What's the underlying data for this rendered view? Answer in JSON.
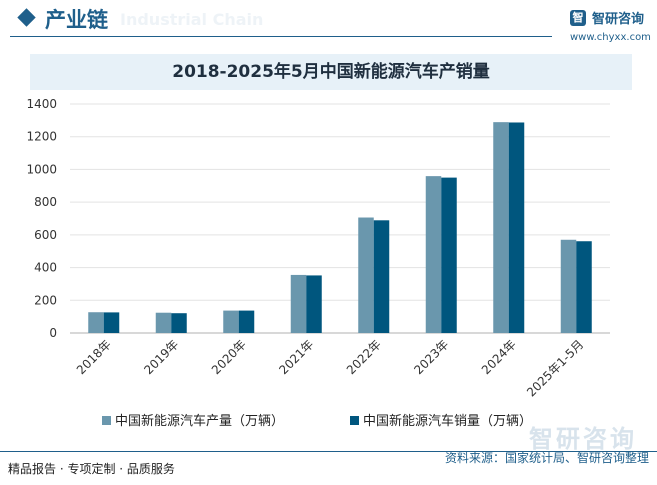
{
  "header": {
    "section_title": "产业链",
    "bg_word": "Industrial Chain",
    "brand_name": "智研咨询",
    "brand_url": "www.chyxx.com"
  },
  "chart_title": "2018-2025年5月中国新能源汽车产销量",
  "colors": {
    "production": "#6a97ad",
    "sales": "#00567e",
    "accent": "#1f5f8b"
  },
  "chart_data": {
    "type": "bar",
    "title": "2018-2025年5月中国新能源汽车产销量",
    "categories": [
      "2018年",
      "2019年",
      "2020年",
      "2021年",
      "2022年",
      "2023年",
      "2024年",
      "2025年1-5月"
    ],
    "series": [
      {
        "name": "中国新能源汽车产量（万辆）",
        "values": [
          127,
          124,
          137,
          355,
          706,
          959,
          1289,
          570
        ]
      },
      {
        "name": "中国新能源汽车销量（万辆）",
        "values": [
          126,
          121,
          137,
          352,
          689,
          950,
          1287,
          561
        ]
      }
    ],
    "ylim": [
      0,
      1400
    ],
    "yticks": [
      0,
      200,
      400,
      600,
      800,
      1000,
      1200,
      1400
    ],
    "grid": true,
    "legend": "bottom"
  },
  "footer": {
    "slogan": "精品报告 · 专项定制 · 品质服务",
    "source": "资料来源：国家统计局、智研咨询整理",
    "watermark": "智研咨询"
  }
}
